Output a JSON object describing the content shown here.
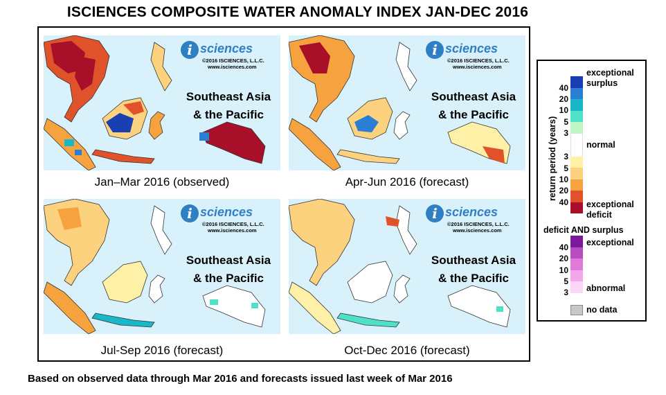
{
  "title": "ISCIENCES COMPOSITE WATER ANOMALY INDEX JAN-DEC 2016",
  "footer": "Based on observed data through Mar 2016 and forecasts issued last week of Mar 2016",
  "logo": {
    "letter": "i",
    "word": "sciences",
    "copyright": "©2016 ISCIENCES, L.L.C.",
    "url": "www.isciences.com"
  },
  "region_line1": "Southeast Asia",
  "region_line2": "& the Pacific",
  "panels": [
    {
      "caption": "Jan–Mar 2016 (observed)"
    },
    {
      "caption": "Apr-Jun 2016 (forecast)"
    },
    {
      "caption": "Jul-Sep 2016 (forecast)"
    },
    {
      "caption": "Oct-Dec 2016 (forecast)"
    }
  ],
  "legend": {
    "axis_label": "return period (years)",
    "surplus_title_1": "exceptional",
    "surplus_title_2": "surplus",
    "normal": "normal",
    "deficit_title_1": "exceptional",
    "deficit_title_2": "deficit",
    "both_title": "deficit AND surplus",
    "both_exceptional": "exceptional",
    "both_abnormal": "abnormal",
    "no_data": "no data",
    "surplus_numbers": [
      "40",
      "20",
      "10",
      "5",
      "3"
    ],
    "deficit_numbers": [
      "3",
      "5",
      "10",
      "20",
      "40"
    ],
    "both_numbers": [
      "40",
      "20",
      "10",
      "5",
      "3"
    ],
    "colors": {
      "surplus": [
        "#1a3fb3",
        "#2a7fd4",
        "#18b8c8",
        "#4fe0c8",
        "#bff5c2"
      ],
      "normal": "#ffffff",
      "deficit": [
        "#fff0a8",
        "#fdd27e",
        "#f5a23f",
        "#e0522a",
        "#a8102a"
      ],
      "both": [
        "#7a1a9a",
        "#b84cc0",
        "#e07ad8",
        "#f3a8ec",
        "#fbd6f6"
      ],
      "no_data": "#c8c8c8",
      "ocean": "#d9f1fb",
      "logo_blue": "#2f7fc4"
    }
  }
}
